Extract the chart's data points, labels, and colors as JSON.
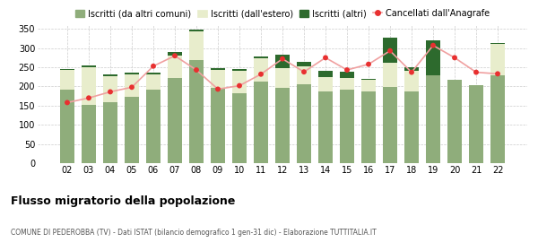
{
  "years": [
    "02",
    "03",
    "04",
    "05",
    "06",
    "07",
    "08",
    "09",
    "10",
    "11",
    "12",
    "13",
    "14",
    "15",
    "16",
    "17",
    "18",
    "19",
    "20",
    "21",
    "22"
  ],
  "iscritti_altri_comuni": [
    192,
    152,
    158,
    174,
    191,
    222,
    268,
    197,
    183,
    213,
    196,
    205,
    187,
    191,
    188,
    199,
    186,
    230,
    217,
    204,
    230
  ],
  "iscritti_estero": [
    50,
    98,
    68,
    58,
    40,
    58,
    75,
    45,
    58,
    60,
    52,
    48,
    38,
    32,
    29,
    63,
    55,
    0,
    0,
    0,
    80
  ],
  "iscritti_altri": [
    3,
    5,
    5,
    5,
    5,
    10,
    5,
    5,
    5,
    5,
    35,
    10,
    15,
    15,
    3,
    65,
    8,
    90,
    0,
    0,
    3
  ],
  "cancellati": [
    158,
    170,
    186,
    198,
    253,
    280,
    243,
    193,
    202,
    232,
    272,
    238,
    275,
    243,
    258,
    293,
    237,
    307,
    275,
    237,
    233
  ],
  "color_altri_comuni": "#8fad7b",
  "color_estero": "#e8edcc",
  "color_altri": "#2d6a2d",
  "color_cancellati": "#e83030",
  "color_cancellati_line": "#f0a0a0",
  "background_color": "#ffffff",
  "grid_color": "#cccccc",
  "ylim": [
    0,
    360
  ],
  "yticks": [
    0,
    50,
    100,
    150,
    200,
    250,
    300,
    350
  ],
  "title": "Flusso migratorio della popolazione",
  "subtitle": "COMUNE DI PEDEROBBA (TV) - Dati ISTAT (bilancio demografico 1 gen-31 dic) - Elaborazione TUTTITALIA.IT",
  "legend_labels": [
    "Iscritti (da altri comuni)",
    "Iscritti (dall'estero)",
    "Iscritti (altri)",
    "Cancellati dall'Anagrafe"
  ]
}
